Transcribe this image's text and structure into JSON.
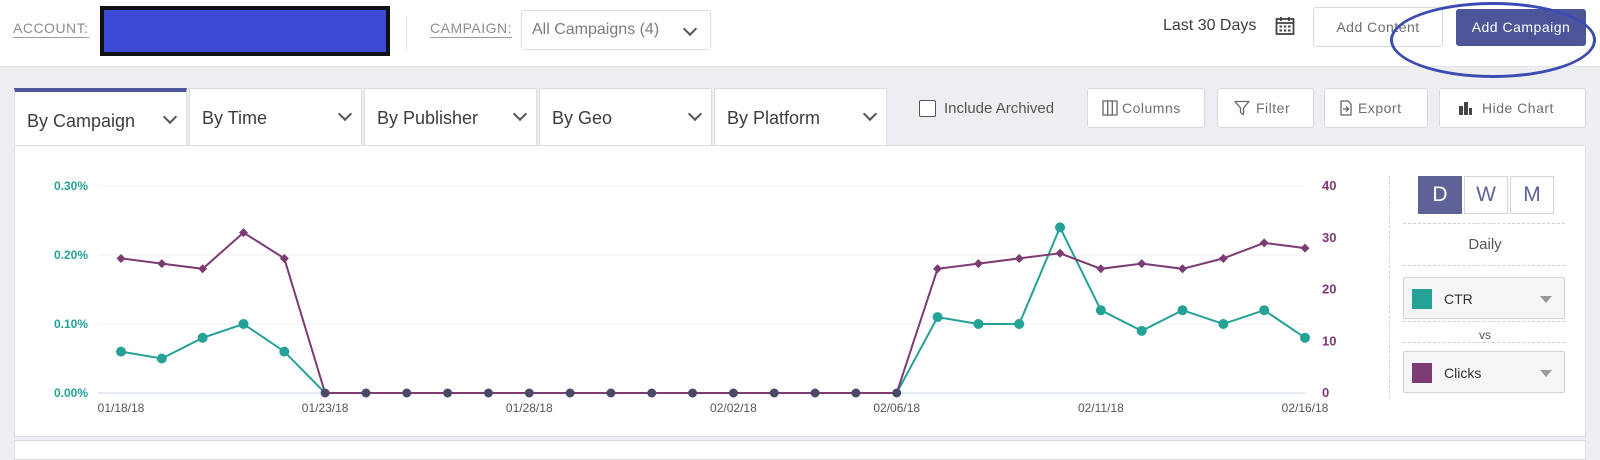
{
  "header": {
    "account_label": "ACCOUNT:",
    "campaign_label": "CAMPAIGN:",
    "campaign_value": "All Campaigns (4)",
    "date_range": "Last 30 Days",
    "add_content_label": "Add Content",
    "add_campaign_label": "Add Campaign"
  },
  "tabs": [
    {
      "label": "By Campaign"
    },
    {
      "label": "By Time"
    },
    {
      "label": "By Publisher"
    },
    {
      "label": "By Geo"
    },
    {
      "label": "By Platform"
    }
  ],
  "toolbar": {
    "include_archived_label": "Include Archived",
    "columns_label": "Columns",
    "filter_label": "Filter",
    "export_label": "Export",
    "hide_chart_label": "Hide Chart"
  },
  "chart_controls": {
    "d_label": "D",
    "w_label": "W",
    "m_label": "M",
    "granularity_label": "Daily",
    "metric1": "CTR",
    "vs_label": "vs",
    "metric2": "Clicks"
  },
  "chart_data": {
    "type": "line",
    "x_labels": [
      "01/18/18",
      "",
      "",
      "",
      "",
      "01/23/18",
      "",
      "",
      "",
      "",
      "01/28/18",
      "",
      "",
      "",
      "",
      "02/02/18",
      "",
      "",
      "",
      "02/06/18",
      "",
      "",
      "",
      "",
      "02/11/18",
      "",
      "",
      "",
      "",
      "02/16/18"
    ],
    "left_ticks": [
      "0.30%",
      "0.20%",
      "0.10%",
      "0.00%"
    ],
    "right_ticks": [
      "40",
      "30",
      "20",
      "10",
      "0"
    ],
    "ylim_left": [
      0,
      0.3
    ],
    "ylim_right": [
      0,
      40
    ],
    "series": [
      {
        "name": "CTR",
        "axis": "left",
        "color": "#25a296",
        "values": [
          0.06,
          0.05,
          0.08,
          0.1,
          0.06,
          0,
          0,
          0,
          0,
          0,
          0,
          0,
          0,
          0,
          0,
          0,
          0,
          0,
          0,
          0,
          0.11,
          0.1,
          0.1,
          0.24,
          0.12,
          0.09,
          0.12,
          0.1,
          0.12,
          0.08
        ]
      },
      {
        "name": "Clicks",
        "axis": "right",
        "color": "#7c3b73",
        "values": [
          26,
          25,
          24,
          31,
          26,
          0,
          0,
          0,
          0,
          0,
          0,
          0,
          0,
          0,
          0,
          0,
          0,
          0,
          0,
          0,
          24,
          25,
          26,
          27,
          24,
          25,
          24,
          26,
          29,
          28
        ]
      }
    ],
    "grid": true
  }
}
